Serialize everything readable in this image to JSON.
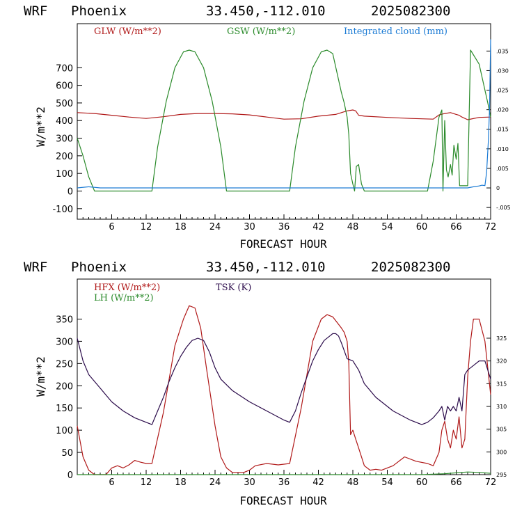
{
  "colors": {
    "red": "#b01818",
    "green": "#2a8a2a",
    "blue": "#1a7ad4",
    "purple": "#2a0a4a",
    "axis": "#000000"
  },
  "chart_data": [
    {
      "type": "line",
      "header": {
        "model": "WRF",
        "location": "Phoenix",
        "coords": "33.450,-112.010",
        "init": "2025082300"
      },
      "xlabel": "FORECAST HOUR",
      "ylabel": "W/m**2",
      "xlim": [
        0,
        72
      ],
      "ylim": [
        -160,
        950
      ],
      "xticks": [
        6,
        12,
        18,
        24,
        30,
        36,
        42,
        48,
        54,
        60,
        66,
        72
      ],
      "yticks": [
        -100,
        0,
        100,
        200,
        300,
        400,
        500,
        600,
        700
      ],
      "right_axis": {
        "label": "Integrated cloud (mm)",
        "ylim": [
          -0.008,
          0.042
        ],
        "ticks": [
          "-.005",
          "0",
          ".005",
          ".010",
          ".015",
          ".020",
          ".025",
          ".030",
          ".035"
        ],
        "tick_values": [
          -0.005,
          0,
          0.005,
          0.01,
          0.015,
          0.02,
          0.025,
          0.03,
          0.035
        ]
      },
      "series": [
        {
          "name": "GLW (W/m**2)",
          "color_key": "red",
          "axis": "left",
          "x": [
            0,
            3,
            6,
            9,
            12,
            15,
            18,
            21,
            24,
            27,
            30,
            33,
            36,
            39,
            42,
            45,
            46.5,
            47,
            48,
            48.5,
            49,
            50,
            54,
            58,
            62,
            63,
            64,
            65,
            66,
            66.5,
            67,
            68,
            70,
            72
          ],
          "y": [
            445,
            440,
            430,
            420,
            412,
            422,
            435,
            440,
            440,
            438,
            432,
            420,
            408,
            410,
            425,
            435,
            450,
            455,
            460,
            455,
            430,
            425,
            418,
            412,
            408,
            432,
            440,
            445,
            435,
            430,
            420,
            405,
            418,
            420
          ]
        },
        {
          "name": "GSW (W/m**2)",
          "color_key": "green",
          "axis": "left",
          "x": [
            0,
            1,
            2,
            3,
            13,
            14,
            15.5,
            17,
            18.5,
            19.5,
            20.5,
            22,
            23.5,
            25,
            26,
            37,
            38,
            39.5,
            41,
            42.5,
            43.5,
            44.5,
            46,
            46.5,
            47,
            47.3,
            47.6,
            48,
            48.3,
            48.6,
            49,
            49.5,
            50,
            61,
            62,
            63,
            63.5,
            63.7,
            64,
            64.3,
            64.6,
            65,
            65.3,
            65.6,
            66,
            66.3,
            66.6,
            67,
            67.5,
            68,
            68.5,
            70,
            71.5,
            72
          ],
          "y": [
            300,
            200,
            80,
            0,
            0,
            250,
            510,
            700,
            790,
            800,
            790,
            700,
            510,
            250,
            0,
            0,
            250,
            510,
            700,
            790,
            800,
            780,
            560,
            500,
            420,
            320,
            100,
            40,
            0,
            140,
            150,
            40,
            0,
            0,
            170,
            420,
            460,
            0,
            400,
            120,
            80,
            150,
            90,
            260,
            180,
            270,
            30,
            30,
            30,
            30,
            800,
            720,
            500,
            420
          ]
        },
        {
          "name": "Integrated cloud (mm)",
          "color_key": "blue",
          "axis": "right",
          "x": [
            0,
            2,
            4,
            10,
            20,
            30,
            40,
            50,
            60,
            65,
            68,
            69,
            70,
            70.5,
            71,
            71.3,
            71.6,
            71.8,
            72
          ],
          "y": [
            0,
            0.0003,
            0,
            0,
            0,
            0,
            0,
            0,
            0,
            0,
            0,
            0.0003,
            0.0005,
            0.0007,
            0.0006,
            0.004,
            0.012,
            0.02,
            0.038
          ]
        }
      ]
    },
    {
      "type": "line",
      "header": {
        "model": "WRF",
        "location": "Phoenix",
        "coords": "33.450,-112.010",
        "init": "2025082300"
      },
      "xlabel": "FORECAST HOUR",
      "ylabel": "W/m**2",
      "xlim": [
        0,
        72
      ],
      "ylim": [
        0,
        440
      ],
      "xticks": [
        6,
        12,
        18,
        24,
        30,
        36,
        42,
        48,
        54,
        60,
        66,
        72
      ],
      "yticks": [
        0,
        50,
        100,
        150,
        200,
        250,
        300,
        350
      ],
      "right_axis": {
        "label": "TSK (K)",
        "ylim": [
          295,
          338
        ],
        "ticks": [
          "295",
          "300",
          "305",
          "310",
          "315",
          "320",
          "325"
        ],
        "tick_values": [
          295,
          300,
          305,
          310,
          315,
          320,
          325
        ]
      },
      "series": [
        {
          "name": "HFX (W/m**2)",
          "color_key": "red",
          "axis": "left",
          "x": [
            0,
            1,
            2,
            3,
            4,
            5,
            6,
            7,
            8,
            9,
            10,
            11,
            12,
            13,
            15,
            17,
            18.5,
            19.5,
            20.5,
            21.5,
            22.5,
            24,
            25,
            26,
            27,
            28,
            29,
            30,
            31,
            33,
            35,
            37,
            39,
            41,
            42.5,
            43.5,
            44.5,
            46,
            46.5,
            47,
            47.3,
            47.6,
            48,
            48.5,
            49,
            50,
            51,
            52,
            53,
            55,
            57,
            59,
            61,
            62,
            63,
            63.5,
            64,
            64.5,
            65,
            65.5,
            66,
            66.5,
            67,
            67.5,
            68,
            68.5,
            69,
            70,
            71,
            72
          ],
          "y": [
            110,
            40,
            10,
            0,
            0,
            0,
            15,
            20,
            15,
            22,
            32,
            28,
            25,
            25,
            140,
            290,
            350,
            380,
            375,
            330,
            240,
            110,
            40,
            15,
            5,
            5,
            5,
            10,
            20,
            25,
            22,
            25,
            150,
            300,
            350,
            360,
            355,
            330,
            320,
            300,
            250,
            90,
            100,
            80,
            60,
            20,
            10,
            12,
            10,
            20,
            40,
            30,
            25,
            20,
            50,
            100,
            120,
            80,
            60,
            100,
            80,
            130,
            60,
            80,
            220,
            300,
            350,
            350,
            300,
            180
          ]
        },
        {
          "name": "LH (W/m**2)",
          "color_key": "green",
          "axis": "left",
          "x": [
            0,
            60,
            62,
            64,
            66,
            68,
            70,
            72
          ],
          "y": [
            0,
            0,
            1,
            2,
            4,
            6,
            5,
            3
          ]
        },
        {
          "name": "TSK (K)",
          "color_key": "purple",
          "axis": "right",
          "x": [
            0,
            1,
            2,
            4,
            6,
            8,
            10,
            12,
            13,
            14,
            15,
            16,
            17,
            18,
            19,
            20,
            21,
            22,
            23,
            24,
            25,
            27,
            30,
            33,
            36,
            37,
            38,
            39,
            40,
            41,
            42,
            43,
            44,
            44.5,
            45,
            45.5,
            46,
            47,
            48,
            49,
            50,
            52,
            55,
            58,
            60,
            61,
            62,
            63,
            63.5,
            64,
            64.5,
            65,
            65.5,
            66,
            66.5,
            67,
            67.5,
            68,
            69,
            70,
            71,
            72
          ],
          "y": [
            325,
            320,
            317,
            314,
            311,
            309,
            307.5,
            306.5,
            306,
            309,
            312,
            315.5,
            318.5,
            321,
            323,
            324.5,
            325,
            324.5,
            322,
            318.5,
            316,
            313.5,
            311,
            309,
            307,
            306.5,
            309,
            313,
            316.5,
            320,
            322.5,
            324.5,
            325.5,
            326,
            326,
            325.5,
            324,
            320.5,
            320,
            318,
            315,
            312,
            309,
            307,
            306,
            306.5,
            307.5,
            309,
            310,
            307,
            310,
            309,
            310,
            309,
            312,
            309,
            317,
            318,
            319,
            320,
            320,
            316
          ]
        }
      ]
    }
  ],
  "panels": [
    {
      "header": {
        "model": "WRF",
        "location": "Phoenix",
        "coords": "33.450,-112.010",
        "init": "2025082300"
      },
      "legend": [
        "GLW (W/m**2)",
        "GSW (W/m**2)",
        "Integrated cloud (mm)"
      ]
    },
    {
      "header": {
        "model": "WRF",
        "location": "Phoenix",
        "coords": "33.450,-112.010",
        "init": "2025082300"
      },
      "legend": [
        "HFX (W/m**2)",
        "LH  (W/m**2)",
        "TSK (K)"
      ]
    }
  ]
}
